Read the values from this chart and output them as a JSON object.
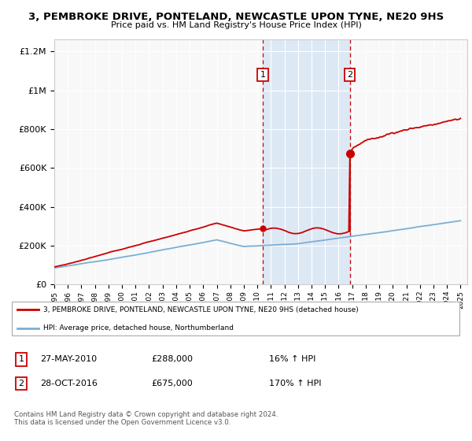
{
  "title": "3, PEMBROKE DRIVE, PONTELAND, NEWCASTLE UPON TYNE, NE20 9HS",
  "subtitle": "Price paid vs. HM Land Registry's House Price Index (HPI)",
  "legend_property": "3, PEMBROKE DRIVE, PONTELAND, NEWCASTLE UPON TYNE, NE20 9HS (detached house)",
  "legend_hpi": "HPI: Average price, detached house, Northumberland",
  "footer": "Contains HM Land Registry data © Crown copyright and database right 2024.\nThis data is licensed under the Open Government Licence v3.0.",
  "sale1_date": "27-MAY-2010",
  "sale1_price": 288000,
  "sale1_pct": "16% ↑ HPI",
  "sale2_date": "28-OCT-2016",
  "sale2_price": 675000,
  "sale2_pct": "170% ↑ HPI",
  "ylim": [
    0,
    1260000
  ],
  "yticks": [
    0,
    200000,
    400000,
    600000,
    800000,
    1000000,
    1200000
  ],
  "ytick_labels": [
    "£0",
    "£200K",
    "£400K",
    "£600K",
    "£800K",
    "£1M",
    "£1.2M"
  ],
  "x_start_year": 1995,
  "x_end_year": 2025,
  "property_color": "#cc0000",
  "hpi_color": "#7bafd4",
  "shade_color": "#dde8f5",
  "vline_color": "#cc0000",
  "sale1_x": 2010.4,
  "sale2_x": 2016.83,
  "note_box_color": "#cc0000",
  "bg_color": "#f8f8f8"
}
